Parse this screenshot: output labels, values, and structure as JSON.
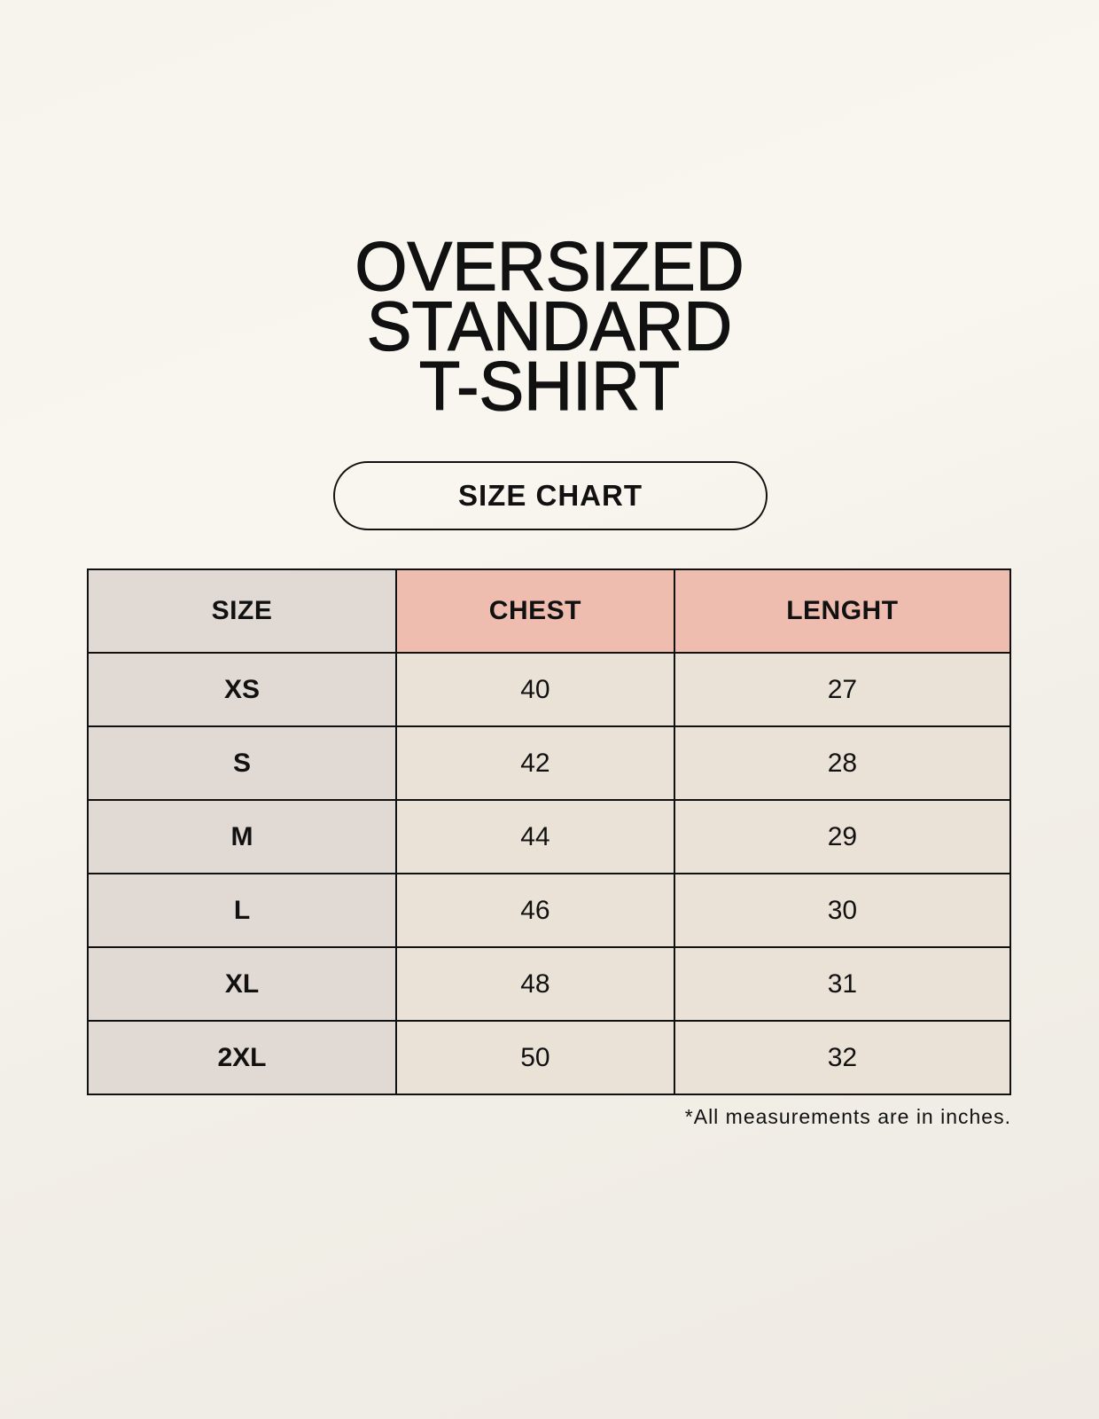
{
  "title": [
    "OVERSIZED",
    "STANDARD",
    "T-SHIRT"
  ],
  "badge": "SIZE CHART",
  "table": {
    "headers": [
      "SIZE",
      "CHEST",
      "LENGHT"
    ],
    "rows": [
      [
        "XS",
        "40",
        "27"
      ],
      [
        "S",
        "42",
        "28"
      ],
      [
        "M",
        "44",
        "29"
      ],
      [
        "L",
        "46",
        "30"
      ],
      [
        "XL",
        "48",
        "31"
      ],
      [
        "2XL",
        "50",
        "32"
      ]
    ]
  },
  "footnote": "*All measurements are in inches.",
  "colors": {
    "size_column": "#e1d9d3",
    "header_accent": "#eebdaf",
    "cell": "#ebe2d7",
    "background": "#f7f4ee"
  }
}
